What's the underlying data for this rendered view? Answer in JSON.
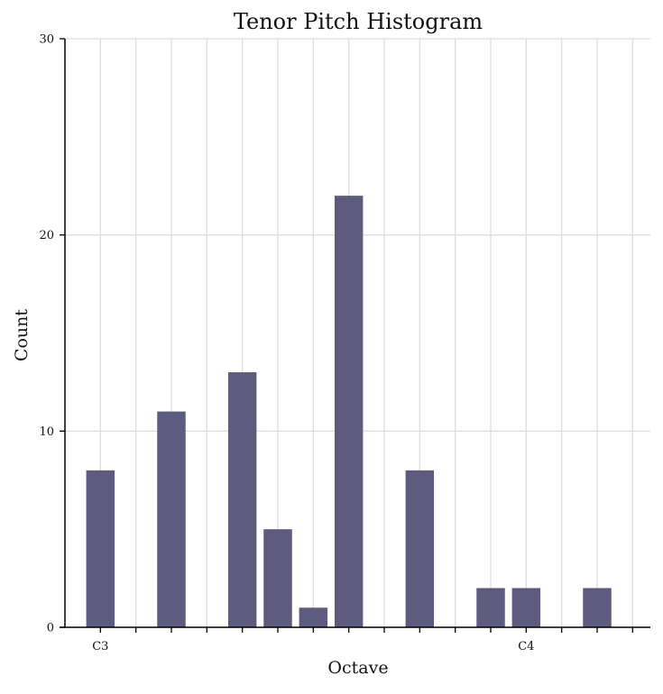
{
  "chart_data": {
    "type": "bar",
    "title": "Tenor Pitch Histogram",
    "xlabel": "Octave",
    "ylabel": "Count",
    "x": [
      1,
      2,
      3,
      4,
      5,
      6,
      7,
      8,
      9,
      10,
      11,
      12,
      13,
      14,
      15,
      16
    ],
    "values": [
      8,
      0,
      11,
      0,
      13,
      5,
      1,
      22,
      0,
      8,
      0,
      2,
      2,
      0,
      2,
      0
    ],
    "x_tick_labels": [
      {
        "x": 1,
        "label": "C3"
      },
      {
        "x": 13,
        "label": "C4"
      }
    ],
    "yticks": [
      0,
      10,
      20,
      30
    ],
    "ylim": [
      0,
      30
    ],
    "xlim": [
      0,
      16.5
    ],
    "grid": true,
    "bar_color": "#5f5b7e",
    "grid_color": "#dedede"
  }
}
